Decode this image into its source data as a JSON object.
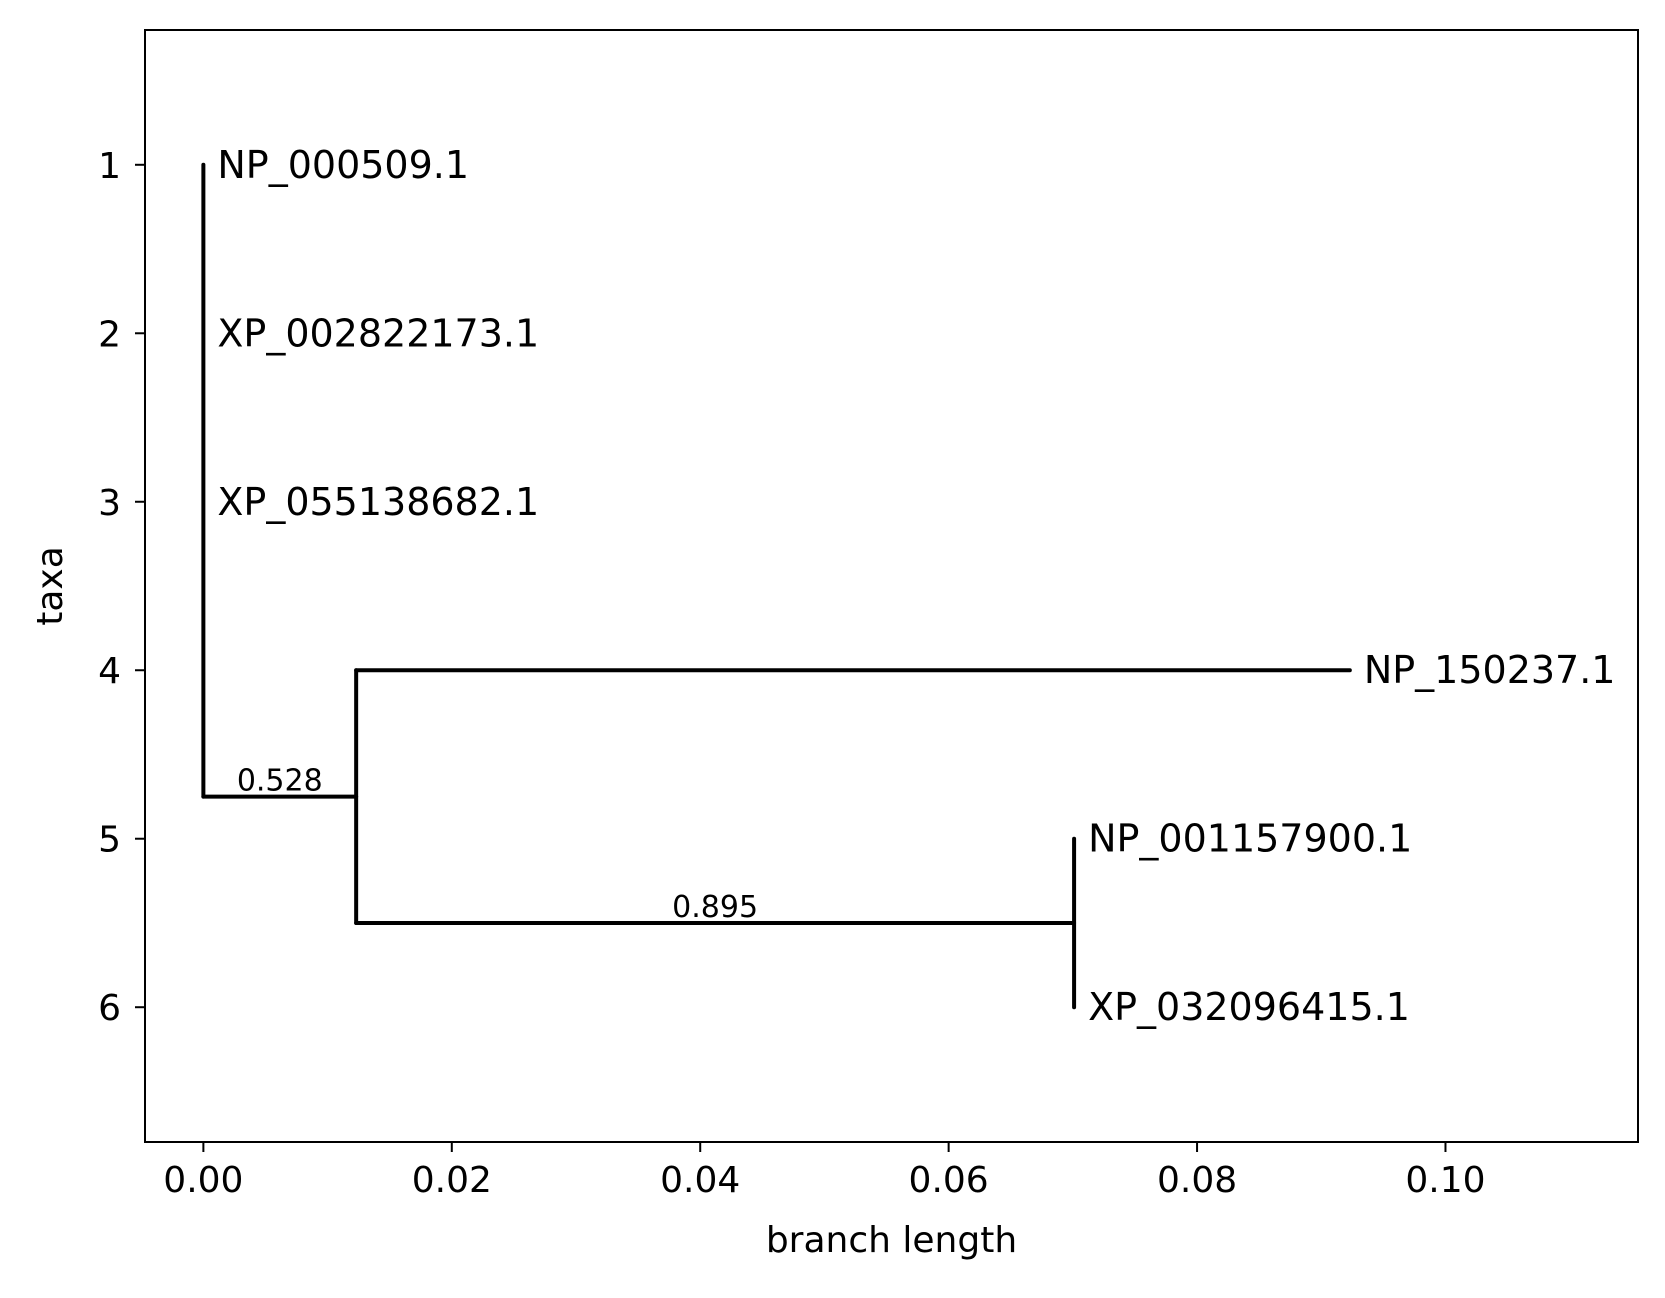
{
  "chart_data": {
    "type": "tree",
    "xlabel": "branch length",
    "ylabel": "taxa",
    "xlim": [
      -0.0047,
      0.1155
    ],
    "ylim": [
      6.8,
      0.2
    ],
    "x_ticks": [
      "0.00",
      "0.02",
      "0.04",
      "0.06",
      "0.08",
      "0.10"
    ],
    "x_tick_values": [
      0,
      0.02,
      0.04,
      0.06,
      0.08,
      0.1
    ],
    "y_ticks": [
      "1",
      "2",
      "3",
      "4",
      "5",
      "6"
    ],
    "y_tick_values": [
      1,
      2,
      3,
      4,
      5,
      6
    ],
    "grid": false,
    "taxa": [
      {
        "label": "NP_000509.1",
        "x": 0.0,
        "y": 1
      },
      {
        "label": "XP_002822173.1",
        "x": 0.0,
        "y": 2
      },
      {
        "label": "XP_055138682.1",
        "x": 0.0,
        "y": 3
      },
      {
        "label": "NP_150237.1",
        "x": 0.0923,
        "y": 4
      },
      {
        "label": "NP_001157900.1",
        "x": 0.0701,
        "y": 5
      },
      {
        "label": "XP_032096415.1",
        "x": 0.0701,
        "y": 6
      }
    ],
    "branches": [
      {
        "x1": 0.0,
        "y1": 1,
        "x2": 0.0,
        "y2": 4.75
      },
      {
        "x1": 0.0,
        "y1": 4.75,
        "x2": 0.0123,
        "y2": 4.75
      },
      {
        "x1": 0.0123,
        "y1": 4,
        "x2": 0.0123,
        "y2": 5.5
      },
      {
        "x1": 0.0123,
        "y1": 4,
        "x2": 0.0923,
        "y2": 4
      },
      {
        "x1": 0.0123,
        "y1": 5.5,
        "x2": 0.0701,
        "y2": 5.5
      },
      {
        "x1": 0.0701,
        "y1": 5,
        "x2": 0.0701,
        "y2": 6
      }
    ],
    "support": [
      {
        "label": "0.528",
        "x": 0.00615,
        "y": 4.75
      },
      {
        "label": "0.895",
        "x": 0.0412,
        "y": 5.5
      }
    ]
  }
}
